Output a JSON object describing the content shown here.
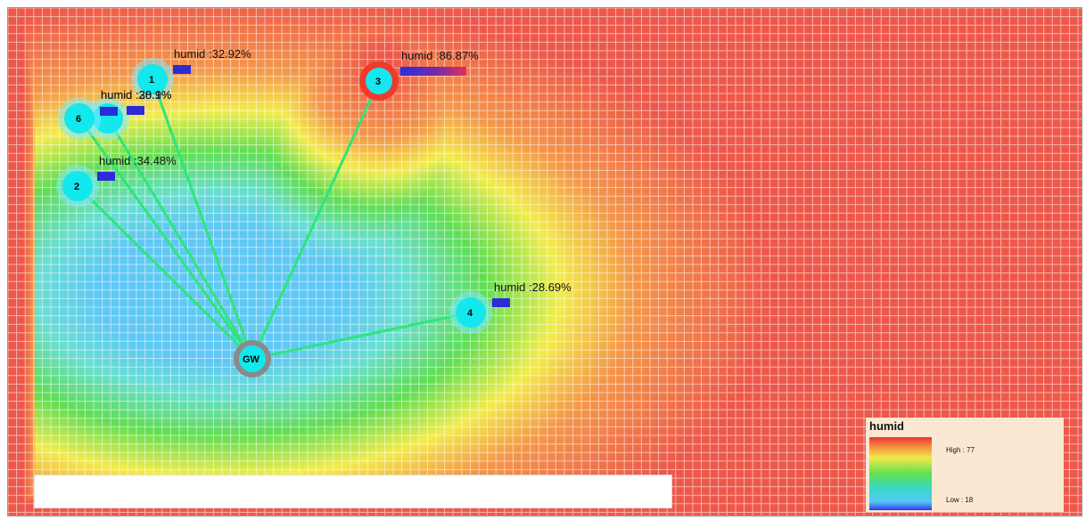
{
  "map": {
    "colors": {
      "high": "#ef5a4b",
      "mid_yellow": "#f3ee4c",
      "mid_green": "#5fe04e",
      "low_cyan": "#62d9f5",
      "link": "#2fe57a",
      "node_core": "#12e8ee",
      "gateway_ring": "#8a8a8a",
      "alert_ring": "#f03a2a",
      "legend_bg": "#fbe8d3"
    },
    "gateway": {
      "label": "GW"
    },
    "nodes": [
      {
        "id": "1",
        "label": "1",
        "reading": "humid :32.92%",
        "value": 32.92,
        "alert": false
      },
      {
        "id": "2",
        "label": "2",
        "reading": "humid :34.48%",
        "value": 34.48,
        "alert": false
      },
      {
        "id": "3",
        "label": "3",
        "reading": "humid :86.87%",
        "value": 86.87,
        "alert": true
      },
      {
        "id": "4",
        "label": "4",
        "reading": "humid :28.69%",
        "value": 28.69,
        "alert": false
      },
      {
        "id": "5",
        "label": "",
        "reading": "humid :30.1%",
        "value": 30.1,
        "alert": false
      },
      {
        "id": "6",
        "label": "6",
        "reading": "humid :28.9%",
        "value": 28.9,
        "alert": false
      }
    ],
    "status_text": ""
  },
  "legend": {
    "title": "humid",
    "high_label": "High : 77",
    "low_label": "Low : 18",
    "high_value": 77,
    "low_value": 18
  }
}
